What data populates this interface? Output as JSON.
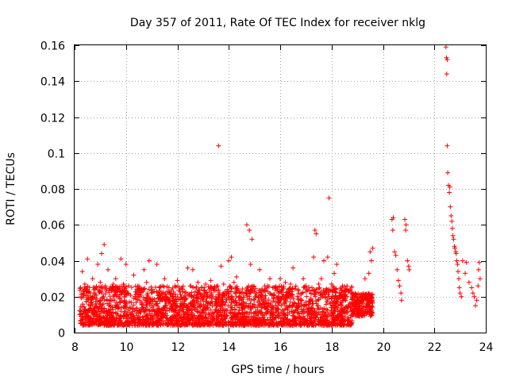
{
  "chart_data": {
    "type": "scatter",
    "title": "Day 357 of 2011, Rate Of TEC Index for receiver nklg",
    "xlabel": "GPS time / hours",
    "ylabel": "ROTI / TECUs",
    "xlim": [
      8,
      24
    ],
    "ylim": [
      0,
      0.16
    ],
    "x_ticks": [
      8,
      10,
      12,
      14,
      16,
      18,
      20,
      22,
      24
    ],
    "x_tick_labels": [
      "8",
      "10",
      "12",
      "14",
      "16",
      "18",
      "20",
      "22",
      "24"
    ],
    "y_ticks": [
      0,
      0.02,
      0.04,
      0.06,
      0.08,
      0.1,
      0.12,
      0.14,
      0.16
    ],
    "y_tick_labels": [
      "0",
      "0.02",
      "0.04",
      "0.06",
      "0.08",
      "0.1",
      "0.12",
      "0.14",
      "0.16"
    ],
    "grid": true,
    "marker": "+",
    "color": "#ff0000",
    "series": [
      {
        "name": "ROTI",
        "points": [
          [
            8.3,
            0.034
          ],
          [
            8.5,
            0.041
          ],
          [
            8.7,
            0.03
          ],
          [
            8.9,
            0.038
          ],
          [
            9.05,
            0.044
          ],
          [
            9.15,
            0.049
          ],
          [
            9.3,
            0.035
          ],
          [
            9.6,
            0.03
          ],
          [
            9.8,
            0.041
          ],
          [
            10.0,
            0.038
          ],
          [
            10.3,
            0.032
          ],
          [
            10.7,
            0.035
          ],
          [
            10.9,
            0.04
          ],
          [
            11.2,
            0.038
          ],
          [
            11.5,
            0.03
          ],
          [
            12.0,
            0.029
          ],
          [
            12.4,
            0.036
          ],
          [
            12.6,
            0.035
          ],
          [
            13.6,
            0.104
          ],
          [
            13.7,
            0.037
          ],
          [
            14.0,
            0.04
          ],
          [
            14.1,
            0.042
          ],
          [
            14.3,
            0.031
          ],
          [
            14.7,
            0.06
          ],
          [
            14.8,
            0.057
          ],
          [
            14.9,
            0.052
          ],
          [
            14.85,
            0.038
          ],
          [
            15.2,
            0.035
          ],
          [
            15.6,
            0.03
          ],
          [
            16.0,
            0.03
          ],
          [
            16.5,
            0.036
          ],
          [
            16.9,
            0.03
          ],
          [
            17.35,
            0.057
          ],
          [
            17.4,
            0.055
          ],
          [
            17.3,
            0.042
          ],
          [
            17.7,
            0.04
          ],
          [
            17.85,
            0.042
          ],
          [
            17.9,
            0.075
          ],
          [
            18.1,
            0.033
          ],
          [
            18.2,
            0.038
          ],
          [
            18.4,
            0.025
          ],
          [
            18.8,
            0.022
          ],
          [
            19.1,
            0.021
          ],
          [
            19.3,
            0.03
          ],
          [
            19.45,
            0.033
          ],
          [
            19.5,
            0.045
          ],
          [
            19.6,
            0.047
          ],
          [
            19.55,
            0.04
          ],
          [
            20.35,
            0.063
          ],
          [
            20.4,
            0.064
          ],
          [
            20.38,
            0.057
          ],
          [
            20.45,
            0.045
          ],
          [
            20.5,
            0.043
          ],
          [
            20.55,
            0.035
          ],
          [
            20.6,
            0.029
          ],
          [
            20.65,
            0.026
          ],
          [
            20.7,
            0.022
          ],
          [
            20.72,
            0.018
          ],
          [
            20.85,
            0.063
          ],
          [
            20.9,
            0.06
          ],
          [
            20.88,
            0.057
          ],
          [
            20.95,
            0.04
          ],
          [
            21.0,
            0.037
          ],
          [
            21.02,
            0.035
          ],
          [
            22.45,
            0.159
          ],
          [
            22.47,
            0.153
          ],
          [
            22.5,
            0.152
          ],
          [
            22.48,
            0.144
          ],
          [
            22.5,
            0.104
          ],
          [
            22.52,
            0.089
          ],
          [
            22.55,
            0.082
          ],
          [
            22.6,
            0.081
          ],
          [
            22.58,
            0.078
          ],
          [
            22.62,
            0.07
          ],
          [
            22.65,
            0.065
          ],
          [
            22.68,
            0.062
          ],
          [
            22.7,
            0.058
          ],
          [
            22.72,
            0.054
          ],
          [
            22.75,
            0.052
          ],
          [
            22.78,
            0.048
          ],
          [
            22.8,
            0.047
          ],
          [
            22.83,
            0.045
          ],
          [
            22.85,
            0.044
          ],
          [
            22.87,
            0.04
          ],
          [
            22.9,
            0.038
          ],
          [
            22.92,
            0.034
          ],
          [
            22.95,
            0.03
          ],
          [
            22.97,
            0.025
          ],
          [
            23.0,
            0.022
          ],
          [
            23.05,
            0.02
          ],
          [
            23.1,
            0.04
          ],
          [
            23.2,
            0.033
          ],
          [
            23.25,
            0.039
          ],
          [
            23.35,
            0.028
          ],
          [
            23.45,
            0.025
          ],
          [
            23.5,
            0.022
          ],
          [
            23.55,
            0.02
          ],
          [
            23.6,
            0.015
          ],
          [
            23.65,
            0.018
          ],
          [
            23.7,
            0.026
          ],
          [
            23.72,
            0.035
          ],
          [
            23.75,
            0.039
          ],
          [
            23.78,
            0.03
          ],
          [
            8.25,
            0.005
          ],
          [
            8.4,
            0.027
          ],
          [
            8.6,
            0.022
          ],
          [
            8.8,
            0.025
          ],
          [
            9.0,
            0.028
          ],
          [
            9.2,
            0.026
          ],
          [
            9.5,
            0.027
          ],
          [
            9.7,
            0.024
          ],
          [
            9.9,
            0.027
          ],
          [
            10.1,
            0.026
          ],
          [
            10.5,
            0.025
          ],
          [
            10.8,
            0.028
          ],
          [
            11.0,
            0.022
          ],
          [
            11.3,
            0.025
          ],
          [
            11.6,
            0.023
          ],
          [
            11.9,
            0.026
          ],
          [
            12.2,
            0.024
          ],
          [
            12.5,
            0.026
          ],
          [
            12.8,
            0.028
          ],
          [
            13.1,
            0.027
          ],
          [
            13.3,
            0.029
          ],
          [
            13.8,
            0.027
          ],
          [
            14.2,
            0.028
          ],
          [
            14.5,
            0.022
          ],
          [
            15.0,
            0.023
          ],
          [
            15.4,
            0.026
          ],
          [
            15.8,
            0.025
          ],
          [
            16.2,
            0.028
          ],
          [
            16.4,
            0.027
          ],
          [
            16.7,
            0.024
          ],
          [
            17.0,
            0.026
          ],
          [
            17.2,
            0.022
          ],
          [
            17.5,
            0.027
          ],
          [
            17.6,
            0.03
          ],
          [
            18.0,
            0.027
          ],
          [
            18.3,
            0.022
          ],
          [
            18.6,
            0.02
          ],
          [
            18.9,
            0.018
          ],
          [
            19.2,
            0.019
          ],
          [
            19.4,
            0.017
          ]
        ]
      }
    ]
  }
}
